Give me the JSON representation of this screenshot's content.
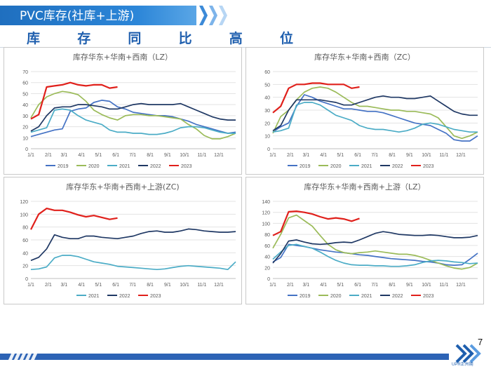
{
  "header": {
    "title": "PVC库存(社库+上游)",
    "subtitle_chars": [
      "库",
      "存",
      "同",
      "比",
      "高",
      "位"
    ]
  },
  "page_number": "7",
  "logo": {
    "text": "UPR正州期"
  },
  "colors": {
    "banner": "#2c7fd3",
    "subtitle": "#1f5fae",
    "year2019": "#4472c4",
    "year2020": "#9bbb59",
    "year2021": "#4bacc6",
    "year2022": "#1f3864",
    "year2023": "#e0201b"
  },
  "chart_data": [
    {
      "type": "line",
      "title": "库存华东+华南+西南（LZ）",
      "ylim": [
        0,
        70
      ],
      "yticks": [
        0,
        10,
        20,
        30,
        40,
        50,
        60,
        70
      ],
      "xtick_labels": [
        "1/1",
        "2/1",
        "3/1",
        "4/1",
        "5/1",
        "6/1",
        "7/1",
        "8/1",
        "9/1",
        "10/1",
        "11/1",
        "12/1"
      ],
      "x": [
        0,
        2,
        4,
        6,
        8,
        10,
        12,
        14,
        16,
        18,
        20,
        22,
        24,
        26,
        28,
        30,
        32,
        34,
        36,
        38,
        40,
        42,
        44,
        46,
        48,
        50,
        52
      ],
      "series": [
        {
          "name": "2019",
          "values": [
            11,
            13,
            15,
            17,
            18,
            34,
            36,
            37,
            42,
            44,
            43,
            38,
            36,
            33,
            32,
            31,
            30,
            30,
            29,
            27,
            25,
            22,
            20,
            18,
            16,
            14,
            15
          ]
        },
        {
          "name": "2020",
          "values": [
            28,
            40,
            47,
            50,
            52,
            51,
            49,
            43,
            35,
            31,
            28,
            26,
            30,
            31,
            31,
            30,
            30,
            29,
            28,
            27,
            22,
            18,
            12,
            9,
            9,
            11,
            14
          ]
        },
        {
          "name": "2021",
          "values": [
            15,
            17,
            19,
            35,
            36,
            35,
            30,
            26,
            24,
            22,
            17,
            15,
            15,
            14,
            14,
            13,
            13,
            14,
            16,
            19,
            20,
            20,
            19,
            17,
            15,
            14,
            14
          ]
        },
        {
          "name": "2022",
          "values": [
            16,
            20,
            30,
            37,
            38,
            38,
            40,
            40,
            39,
            38,
            36,
            36,
            38,
            40,
            41,
            40,
            40,
            40,
            40,
            41,
            38,
            35,
            32,
            29,
            27,
            26,
            26
          ]
        },
        {
          "name": "2023",
          "values": [
            27,
            31,
            56,
            57,
            58,
            60,
            58,
            57,
            58,
            58,
            55,
            56,
            null,
            null,
            null,
            null,
            null,
            null,
            null,
            null,
            null,
            null,
            null,
            null,
            null,
            null,
            null
          ]
        }
      ]
    },
    {
      "type": "line",
      "title": "库存华东+华南+西南（ZC）",
      "ylim": [
        0,
        60
      ],
      "yticks": [
        0,
        10,
        20,
        30,
        40,
        50,
        60
      ],
      "xtick_labels": [
        "1/1",
        "2/1",
        "3/1",
        "4/1",
        "5/1",
        "6/1",
        "7/1",
        "8/1",
        "9/1",
        "10/1",
        "11/1",
        "12/1"
      ],
      "x": [
        0,
        2,
        4,
        6,
        8,
        10,
        12,
        14,
        16,
        18,
        20,
        22,
        24,
        26,
        28,
        30,
        32,
        34,
        36,
        38,
        40,
        42,
        44,
        46,
        48,
        50,
        52
      ],
      "series": [
        {
          "name": "2019",
          "values": [
            13,
            17,
            20,
            33,
            42,
            40,
            37,
            35,
            33,
            31,
            31,
            30,
            29,
            29,
            28,
            26,
            24,
            22,
            20,
            19,
            18,
            15,
            12,
            7,
            6,
            6,
            10
          ]
        },
        {
          "name": "2020",
          "values": [
            12,
            25,
            30,
            38,
            44,
            47,
            48,
            47,
            44,
            40,
            36,
            33,
            33,
            32,
            31,
            30,
            30,
            29,
            29,
            28,
            27,
            24,
            17,
            10,
            8,
            10,
            13
          ]
        },
        {
          "name": "2021",
          "values": [
            13,
            14,
            16,
            34,
            36,
            36,
            34,
            30,
            26,
            24,
            22,
            18,
            16,
            15,
            15,
            14,
            13,
            14,
            16,
            19,
            20,
            19,
            17,
            15,
            14,
            13,
            13
          ]
        },
        {
          "name": "2022",
          "values": [
            14,
            18,
            30,
            38,
            38,
            38,
            38,
            37,
            36,
            34,
            34,
            36,
            38,
            40,
            41,
            40,
            40,
            39,
            39,
            40,
            41,
            37,
            33,
            29,
            27,
            26,
            26
          ]
        },
        {
          "name": "2023",
          "values": [
            28,
            33,
            47,
            50,
            50,
            51,
            51,
            50,
            50,
            50,
            47,
            48,
            null,
            null,
            null,
            null,
            null,
            null,
            null,
            null,
            null,
            null,
            null,
            null,
            null,
            null,
            null
          ]
        }
      ]
    },
    {
      "type": "line",
      "title": "库存华东+华南+西南+上游(ZC)",
      "ylim": [
        0,
        120
      ],
      "yticks": [
        0,
        20,
        40,
        60,
        80,
        100,
        120
      ],
      "xtick_labels": [
        "1/1",
        "2/1",
        "3/1",
        "4/1",
        "5/1",
        "6/1",
        "7/1",
        "8/1",
        "9/1",
        "10/1",
        "11/1",
        "12/1"
      ],
      "x": [
        0,
        2,
        4,
        6,
        8,
        10,
        12,
        14,
        16,
        18,
        20,
        22,
        24,
        26,
        28,
        30,
        32,
        34,
        36,
        38,
        40,
        42,
        44,
        46,
        48,
        50,
        52
      ],
      "series": [
        {
          "name": "2021",
          "values": [
            14,
            15,
            18,
            32,
            36,
            36,
            34,
            30,
            26,
            24,
            22,
            19,
            18,
            17,
            16,
            15,
            14,
            15,
            17,
            19,
            20,
            19,
            18,
            17,
            16,
            14,
            26
          ]
        },
        {
          "name": "2022",
          "values": [
            28,
            33,
            46,
            68,
            64,
            62,
            62,
            66,
            66,
            64,
            63,
            62,
            64,
            66,
            70,
            73,
            74,
            72,
            72,
            74,
            77,
            76,
            74,
            73,
            72,
            72,
            73
          ]
        },
        {
          "name": "2023",
          "values": [
            76,
            100,
            109,
            106,
            106,
            103,
            99,
            96,
            98,
            95,
            92,
            94,
            null,
            null,
            null,
            null,
            null,
            null,
            null,
            null,
            null,
            null,
            null,
            null,
            null,
            null,
            null
          ]
        }
      ]
    },
    {
      "type": "line",
      "title": "库存华东+华南+西南+上游（LZ）",
      "ylim": [
        0,
        140
      ],
      "yticks": [
        0,
        20,
        40,
        60,
        80,
        100,
        120,
        140
      ],
      "xtick_labels": [
        "1/1",
        "2/1",
        "3/1",
        "4/1",
        "5/1",
        "6/1",
        "7/1",
        "8/1",
        "9/1",
        "10/1",
        "11/1",
        "12/1"
      ],
      "x": [
        0,
        2,
        4,
        6,
        8,
        10,
        12,
        14,
        16,
        18,
        20,
        22,
        24,
        26,
        28,
        30,
        32,
        34,
        36,
        38,
        40,
        42,
        44,
        46,
        48,
        50,
        52
      ],
      "series": [
        {
          "name": "2019",
          "values": [
            30,
            38,
            62,
            60,
            58,
            55,
            52,
            50,
            48,
            47,
            45,
            43,
            42,
            40,
            38,
            36,
            35,
            34,
            33,
            31,
            30,
            28,
            25,
            24,
            25,
            35,
            46
          ]
        },
        {
          "name": "2020",
          "values": [
            55,
            80,
            110,
            115,
            105,
            95,
            78,
            62,
            52,
            47,
            45,
            47,
            48,
            50,
            48,
            46,
            44,
            44,
            42,
            38,
            33,
            28,
            23,
            19,
            17,
            20,
            28
          ]
        },
        {
          "name": "2021",
          "values": [
            35,
            48,
            60,
            62,
            58,
            55,
            48,
            40,
            33,
            28,
            25,
            24,
            24,
            23,
            23,
            22,
            22,
            23,
            25,
            29,
            32,
            33,
            32,
            30,
            29,
            27,
            28
          ]
        },
        {
          "name": "2022",
          "values": [
            28,
            45,
            68,
            70,
            66,
            63,
            62,
            63,
            65,
            66,
            65,
            70,
            76,
            82,
            85,
            83,
            80,
            79,
            78,
            78,
            79,
            78,
            76,
            74,
            74,
            75,
            78
          ]
        },
        {
          "name": "2023",
          "values": [
            78,
            85,
            121,
            122,
            120,
            117,
            112,
            108,
            110,
            108,
            104,
            109,
            null,
            null,
            null,
            null,
            null,
            null,
            null,
            null,
            null,
            null,
            null,
            null,
            null,
            null,
            null
          ]
        }
      ]
    }
  ]
}
